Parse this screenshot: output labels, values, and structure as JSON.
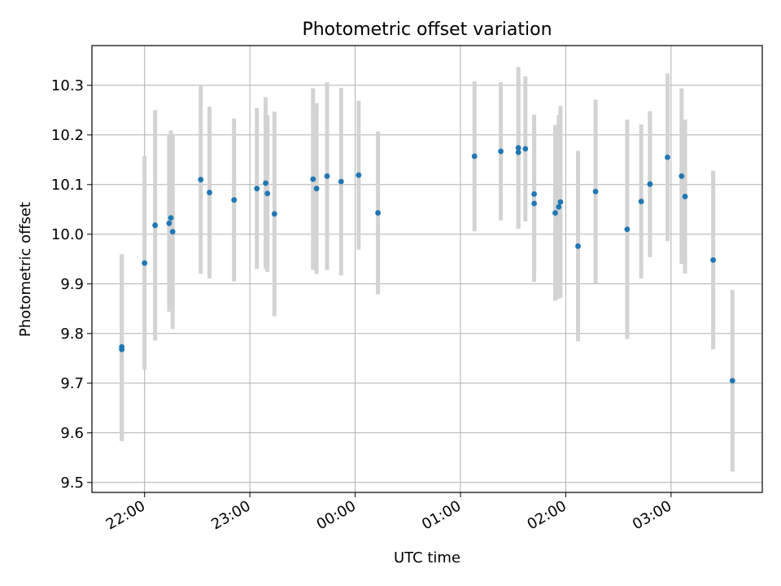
{
  "chart_data": {
    "type": "scatter",
    "title": "Photometric offset variation",
    "xlabel": "UTC time",
    "ylabel": "Photometric offset",
    "x_unit": "UTC time (HH:MM); times after midnight belong to the following day",
    "xlim": [
      "21:30",
      "03:52"
    ],
    "ylim": [
      9.48,
      10.38
    ],
    "x_ticks": [
      "22:00",
      "23:00",
      "00:00",
      "01:00",
      "02:00",
      "03:00"
    ],
    "y_ticks": [
      "9.5",
      "9.6",
      "9.7",
      "9.8",
      "9.9",
      "10.0",
      "10.1",
      "10.2",
      "10.3"
    ],
    "grid": true,
    "point_color": "#1f77b4",
    "errorbar_color": "#d3d3d3",
    "series": [
      {
        "points": [
          {
            "x": "21:47",
            "y": 9.773,
            "err": 0.187
          },
          {
            "x": "21:47",
            "y": 9.768,
            "err": 0.185
          },
          {
            "x": "22:00",
            "y": 9.942,
            "err": 0.215
          },
          {
            "x": "22:06",
            "y": 10.018,
            "err": 0.232
          },
          {
            "x": "22:14",
            "y": 10.022,
            "err": 0.178
          },
          {
            "x": "22:15",
            "y": 10.033,
            "err": 0.176
          },
          {
            "x": "22:16",
            "y": 10.005,
            "err": 0.196
          },
          {
            "x": "22:32",
            "y": 10.11,
            "err": 0.19
          },
          {
            "x": "22:37",
            "y": 10.084,
            "err": 0.173
          },
          {
            "x": "22:51",
            "y": 10.069,
            "err": 0.164
          },
          {
            "x": "23:04",
            "y": 10.092,
            "err": 0.162
          },
          {
            "x": "23:09",
            "y": 10.103,
            "err": 0.173
          },
          {
            "x": "23:10",
            "y": 10.082,
            "err": 0.158
          },
          {
            "x": "23:14",
            "y": 10.041,
            "err": 0.206
          },
          {
            "x": "23:36",
            "y": 10.111,
            "err": 0.183
          },
          {
            "x": "23:38",
            "y": 10.092,
            "err": 0.172
          },
          {
            "x": "23:44",
            "y": 10.117,
            "err": 0.189
          },
          {
            "x": "23:52",
            "y": 10.106,
            "err": 0.189
          },
          {
            "x": "00:02",
            "y": 10.119,
            "err": 0.15
          },
          {
            "x": "00:13",
            "y": 10.043,
            "err": 0.164
          },
          {
            "x": "01:08",
            "y": 10.157,
            "err": 0.151
          },
          {
            "x": "01:23",
            "y": 10.167,
            "err": 0.139
          },
          {
            "x": "01:33",
            "y": 10.165,
            "err": 0.153
          },
          {
            "x": "01:33",
            "y": 10.174,
            "err": 0.163
          },
          {
            "x": "01:37",
            "y": 10.172,
            "err": 0.146
          },
          {
            "x": "01:42",
            "y": 10.081,
            "err": 0.16
          },
          {
            "x": "01:42",
            "y": 10.062,
            "err": 0.158
          },
          {
            "x": "01:54",
            "y": 10.043,
            "err": 0.177
          },
          {
            "x": "01:56",
            "y": 10.055,
            "err": 0.185
          },
          {
            "x": "01:57",
            "y": 10.065,
            "err": 0.193
          },
          {
            "x": "02:07",
            "y": 9.976,
            "err": 0.192
          },
          {
            "x": "02:17",
            "y": 10.086,
            "err": 0.185
          },
          {
            "x": "02:35",
            "y": 10.01,
            "err": 0.221
          },
          {
            "x": "02:43",
            "y": 10.066,
            "err": 0.155
          },
          {
            "x": "02:48",
            "y": 10.101,
            "err": 0.147
          },
          {
            "x": "02:58",
            "y": 10.155,
            "err": 0.169
          },
          {
            "x": "03:06",
            "y": 10.117,
            "err": 0.177
          },
          {
            "x": "03:08",
            "y": 10.076,
            "err": 0.155
          },
          {
            "x": "03:24",
            "y": 9.948,
            "err": 0.18
          },
          {
            "x": "03:35",
            "y": 9.705,
            "err": 0.183
          }
        ]
      }
    ]
  }
}
